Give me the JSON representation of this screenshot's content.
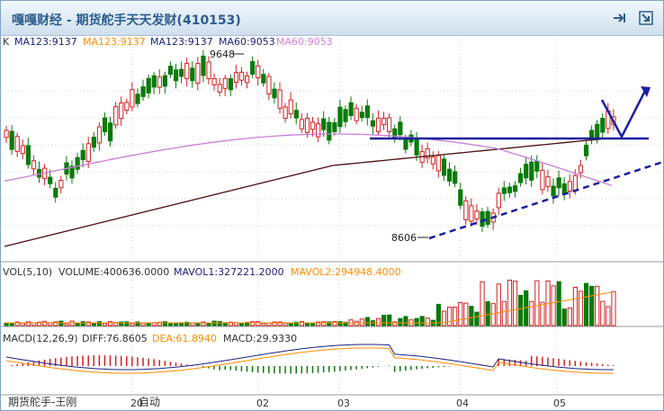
{
  "window": {
    "title": "嘎嘎财经 - 期货舵手天天发财(410153)"
  },
  "toolbar": {
    "pin_icon": "pin-icon",
    "detach_icon": "detach-icon"
  },
  "price_panel": {
    "k_label": "K",
    "ma_legend": [
      {
        "text": "MA123:9137",
        "color": "#1a237e"
      },
      {
        "text": "MA123:9137",
        "color": "#ff8c00"
      },
      {
        "text": "MA123:9137",
        "color": "#1a237e"
      },
      {
        "text": "MA60:9053",
        "color": "#1a237e"
      },
      {
        "text": "MA60:9053",
        "color": "#d77dd7"
      }
    ],
    "high_label": "9648",
    "low_label": "8606"
  },
  "volume_panel": {
    "label": "VOL(5,10)",
    "volume": "VOLUME:400636.0000",
    "mavol1": "MAVOL1:327221.2000",
    "mavol2": "MAVOL2:294948.4000"
  },
  "macd_panel": {
    "label": "MACD(12,26,9)",
    "diff": "DIFF:76.8605",
    "dea": "DEA:61.8940",
    "macd": "MACD:29.9330"
  },
  "x_axis": [
    "20",
    "02",
    "03",
    "04",
    "05"
  ],
  "footer": {
    "text": "期货舵手-王刚",
    "auto": "自动"
  },
  "colors": {
    "up": "#d42020",
    "down": "#0a7a0a",
    "ma_dark": "#4a0d0d",
    "ma_purple": "#c77fd6",
    "annot": "#1a1f9e",
    "grid": "#cfcfcf"
  }
}
